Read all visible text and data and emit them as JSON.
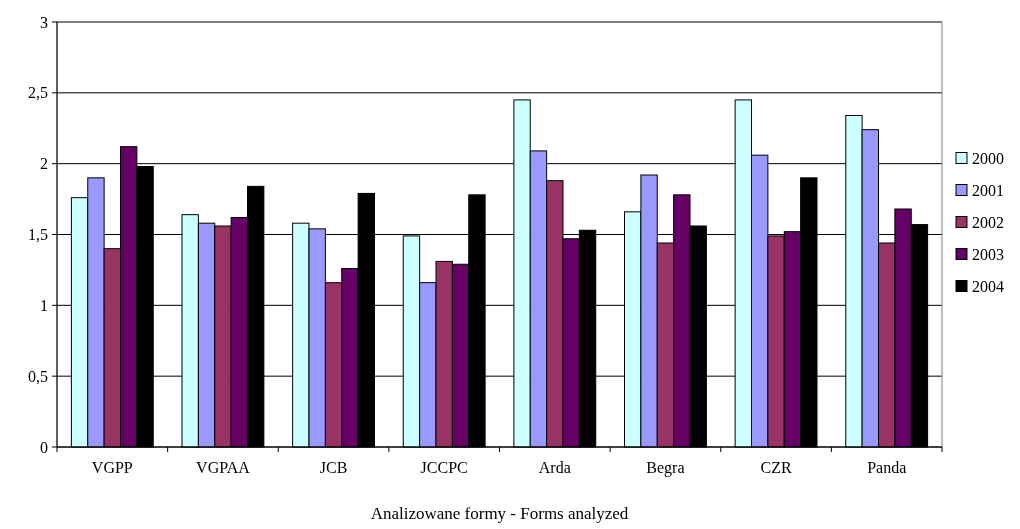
{
  "chart_data": {
    "type": "bar",
    "xlabel": "Analizowane formy - Forms analyzed",
    "categories": [
      "VGPP",
      "VGPAA",
      "JCB",
      "JCCPC",
      "Arda",
      "Begra",
      "CZR",
      "Panda"
    ],
    "series": [
      {
        "name": "2000",
        "color": "#ccffff",
        "values": [
          1.76,
          1.64,
          1.58,
          1.49,
          2.45,
          1.66,
          2.45,
          2.34
        ]
      },
      {
        "name": "2001",
        "color": "#9999ff",
        "values": [
          1.9,
          1.58,
          1.54,
          1.16,
          2.09,
          1.92,
          2.06,
          2.24
        ]
      },
      {
        "name": "2002",
        "color": "#993366",
        "values": [
          1.4,
          1.56,
          1.16,
          1.31,
          1.88,
          1.44,
          1.49,
          1.44
        ]
      },
      {
        "name": "2003",
        "color": "#660066",
        "values": [
          2.12,
          1.62,
          1.26,
          1.29,
          1.47,
          1.78,
          1.52,
          1.68
        ]
      },
      {
        "name": "2004",
        "color": "#000000",
        "values": [
          1.98,
          1.84,
          1.79,
          1.78,
          1.53,
          1.56,
          1.9,
          1.57
        ]
      }
    ],
    "ylim": [
      0,
      3
    ],
    "yticks": [
      0,
      {
        "value": 0.5,
        "label": "0,5"
      },
      1,
      {
        "value": 1.5,
        "label": "1,5"
      },
      2,
      {
        "value": 2.5,
        "label": "2,5"
      },
      3
    ],
    "grid": "y",
    "legend": "right"
  }
}
